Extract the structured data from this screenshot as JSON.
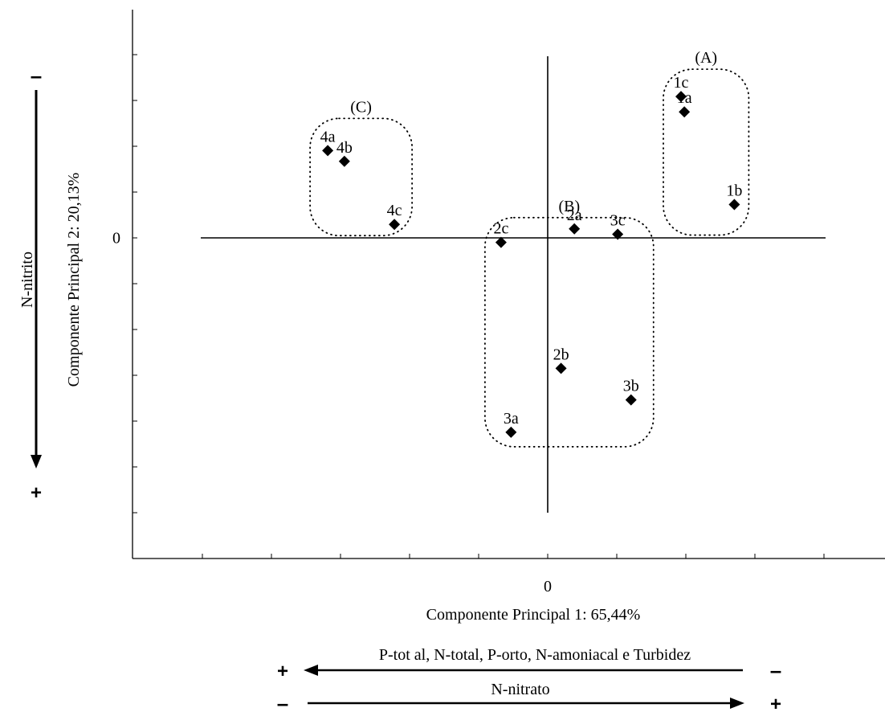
{
  "chart_data": {
    "type": "scatter",
    "xlabel": "Componente Principal 1: 65,44%",
    "ylabel": "Componente Principal 2: 20,13%",
    "x_zero_label": "0",
    "y_zero_label": "0",
    "xlim": [
      -4.8,
      4.6
    ],
    "ylim": [
      -3.55,
      2.6
    ],
    "grid": false,
    "points": [
      {
        "label": "1a",
        "x": 2.05,
        "y": 1.4
      },
      {
        "label": "1b",
        "x": 2.8,
        "y": 0.37
      },
      {
        "label": "1c",
        "x": 2.0,
        "y": 1.57
      },
      {
        "label": "2a",
        "x": 0.4,
        "y": 0.1
      },
      {
        "label": "2b",
        "x": 0.2,
        "y": -1.45
      },
      {
        "label": "2c",
        "x": -0.7,
        "y": -0.05
      },
      {
        "label": "3a",
        "x": -0.55,
        "y": -2.16
      },
      {
        "label": "3b",
        "x": 1.25,
        "y": -1.8
      },
      {
        "label": "3c",
        "x": 1.05,
        "y": 0.04
      },
      {
        "label": "4a",
        "x": -3.3,
        "y": 0.97
      },
      {
        "label": "4b",
        "x": -3.05,
        "y": 0.85
      },
      {
        "label": "4c",
        "x": -2.3,
        "y": 0.15
      }
    ],
    "groups": [
      {
        "label": "(A)",
        "members": [
          "1a",
          "1b",
          "1c"
        ]
      },
      {
        "label": "(B)",
        "members": [
          "2a",
          "2b",
          "2c",
          "3a",
          "3b",
          "3c"
        ]
      },
      {
        "label": "(C)",
        "members": [
          "4a",
          "4b",
          "4c"
        ]
      }
    ],
    "annotations": {
      "left_axis_label": "N-nitrito",
      "left_axis_top_sign": "–",
      "left_axis_bottom_sign": "+",
      "bottom_arrow_1_label": "P-tot al, N-total, P-orto, N-amoniacal e Turbidez",
      "bottom_arrow_1_left_sign": "+",
      "bottom_arrow_1_right_sign": "–",
      "bottom_arrow_2_label": "N-nitrato",
      "bottom_arrow_2_left_sign": "–",
      "bottom_arrow_2_right_sign": "+"
    }
  }
}
